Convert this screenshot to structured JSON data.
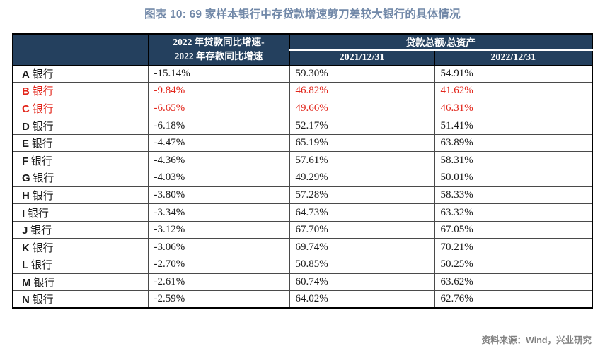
{
  "chart_data": {
    "type": "table",
    "title": "图表 10: 69 家样本银行中存贷款增速剪刀差较大银行的具体情况",
    "header": {
      "bank_col": "",
      "delta_line1": "2022 年贷款同比增速-",
      "delta_line2": "2022 年存款同比增速",
      "group": "贷款总额/总资产",
      "sub": [
        "2021/12/31",
        "2022/12/31"
      ]
    },
    "rows": [
      {
        "name": "A 银行",
        "delta": "-15.14%",
        "v2021": "59.30%",
        "v2022": "54.91%",
        "highlight": false
      },
      {
        "name": "B 银行",
        "delta": "-9.84%",
        "v2021": "46.82%",
        "v2022": "41.62%",
        "highlight": true
      },
      {
        "name": "C 银行",
        "delta": "-6.65%",
        "v2021": "49.66%",
        "v2022": "46.31%",
        "highlight": true
      },
      {
        "name": "D 银行",
        "delta": "-6.18%",
        "v2021": "52.17%",
        "v2022": "51.41%",
        "highlight": false
      },
      {
        "name": "E 银行",
        "delta": "-4.47%",
        "v2021": "65.19%",
        "v2022": "63.89%",
        "highlight": false
      },
      {
        "name": "F 银行",
        "delta": "-4.36%",
        "v2021": "57.61%",
        "v2022": "58.31%",
        "highlight": false
      },
      {
        "name": "G 银行",
        "delta": "-4.03%",
        "v2021": "49.29%",
        "v2022": "50.01%",
        "highlight": false
      },
      {
        "name": "H 银行",
        "delta": "-3.80%",
        "v2021": "57.28%",
        "v2022": "58.33%",
        "highlight": false
      },
      {
        "name": "I 银行",
        "delta": "-3.34%",
        "v2021": "64.73%",
        "v2022": "63.32%",
        "highlight": false
      },
      {
        "name": "J 银行",
        "delta": "-3.12%",
        "v2021": "67.70%",
        "v2022": "67.05%",
        "highlight": false
      },
      {
        "name": "K 银行",
        "delta": "-3.06%",
        "v2021": "69.74%",
        "v2022": "70.21%",
        "highlight": false
      },
      {
        "name": "L 银行",
        "delta": "-2.70%",
        "v2021": "50.85%",
        "v2022": "50.25%",
        "highlight": false
      },
      {
        "name": "M 银行",
        "delta": "-2.61%",
        "v2021": "60.74%",
        "v2022": "63.62%",
        "highlight": false
      },
      {
        "name": "N 银行",
        "delta": "-2.59%",
        "v2021": "64.02%",
        "v2022": "62.76%",
        "highlight": false
      }
    ],
    "source": "资料来源：Wind，兴业研究",
    "colors": {
      "header_bg": "#24405e",
      "highlight_red": "#e2251a",
      "title_blue": "#7188a8",
      "source_gray": "#808080"
    }
  }
}
